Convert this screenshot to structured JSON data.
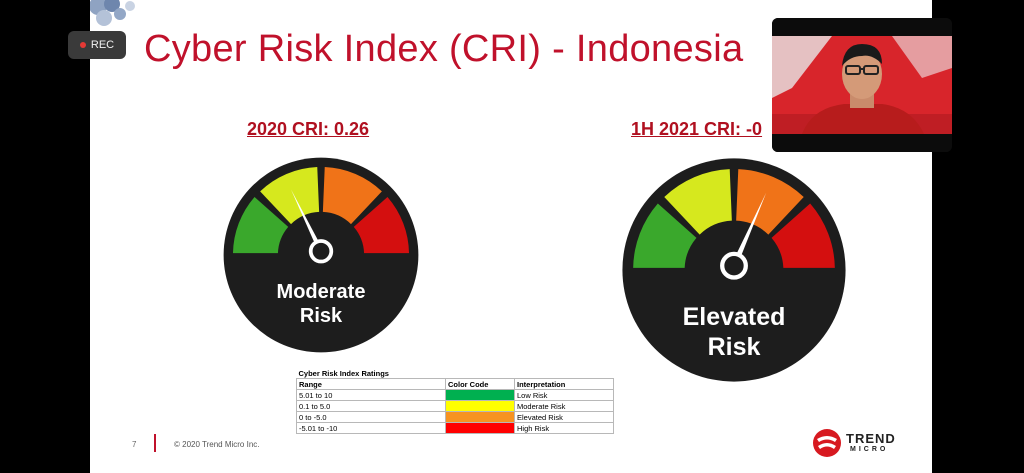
{
  "recording": {
    "label": "REC",
    "dot_color": "#e53935"
  },
  "slide": {
    "title": "Cyber Risk Index (CRI) - Indonesia",
    "footer": {
      "page_number": "7",
      "copyright": "© 2020 Trend Micro Inc."
    },
    "logo": {
      "word1": "TREND",
      "word2": "MICRO",
      "icon": "trend-micro-ball-icon"
    }
  },
  "gauges": [
    {
      "title": "2020 CRI: 0.26",
      "label_line1": "Moderate",
      "label_line2": "Risk",
      "needle_segment": "moderate"
    },
    {
      "title": "1H 2021 CRI: -0",
      "label_line1": "Elevated",
      "label_line2": "Risk",
      "needle_segment": "elevated"
    }
  ],
  "segment_colors": {
    "low": "#3aa82c",
    "moderate": "#d6e81e",
    "elevated": "#f07318",
    "high": "#d40f0f"
  },
  "ratings_table": {
    "caption": "Cyber Risk Index Ratings",
    "headers": [
      "Range",
      "Color Code",
      "Interpretation"
    ],
    "rows": [
      {
        "range": "5.01 to 10",
        "color": "#00b050",
        "interpretation": "Low Risk"
      },
      {
        "range": "0.1 to 5.0",
        "color": "#ffff00",
        "interpretation": "Moderate Risk"
      },
      {
        "range": "0 to -5.0",
        "color": "#f79320",
        "interpretation": "Elevated Risk"
      },
      {
        "range": "-5.01 to -10",
        "color": "#ff0000",
        "interpretation": "High Risk"
      }
    ]
  },
  "webcam": {
    "background": "#d8252b"
  }
}
